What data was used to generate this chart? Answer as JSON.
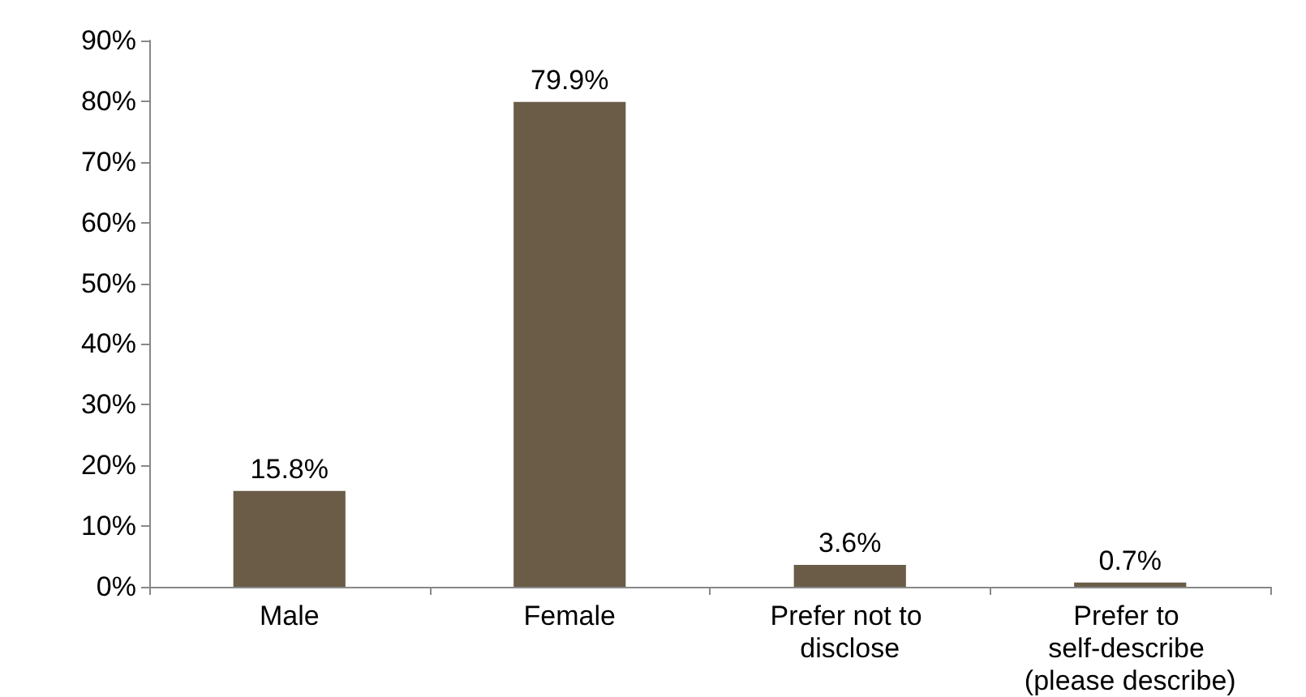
{
  "chart_data": {
    "type": "bar",
    "categories": [
      "Male",
      "Female",
      "Prefer not to disclose",
      "Prefer to self-describe (please describe)"
    ],
    "values": [
      15.8,
      79.9,
      3.6,
      0.7
    ],
    "value_labels": [
      "15.8%",
      "79.9%",
      "3.6%",
      "0.7%"
    ],
    "color": "#6b5c48",
    "ylim": [
      0,
      90
    ],
    "yticks": [
      {
        "value": 0,
        "label": "0%"
      },
      {
        "value": 10,
        "label": "10%"
      },
      {
        "value": 20,
        "label": "20%"
      },
      {
        "value": 30,
        "label": "30%"
      },
      {
        "value": 40,
        "label": "40%"
      },
      {
        "value": 50,
        "label": "50%"
      },
      {
        "value": 60,
        "label": "60%"
      },
      {
        "value": 70,
        "label": "70%"
      },
      {
        "value": 80,
        "label": "80%"
      },
      {
        "value": 90,
        "label": "90%"
      }
    ],
    "grid": false
  }
}
